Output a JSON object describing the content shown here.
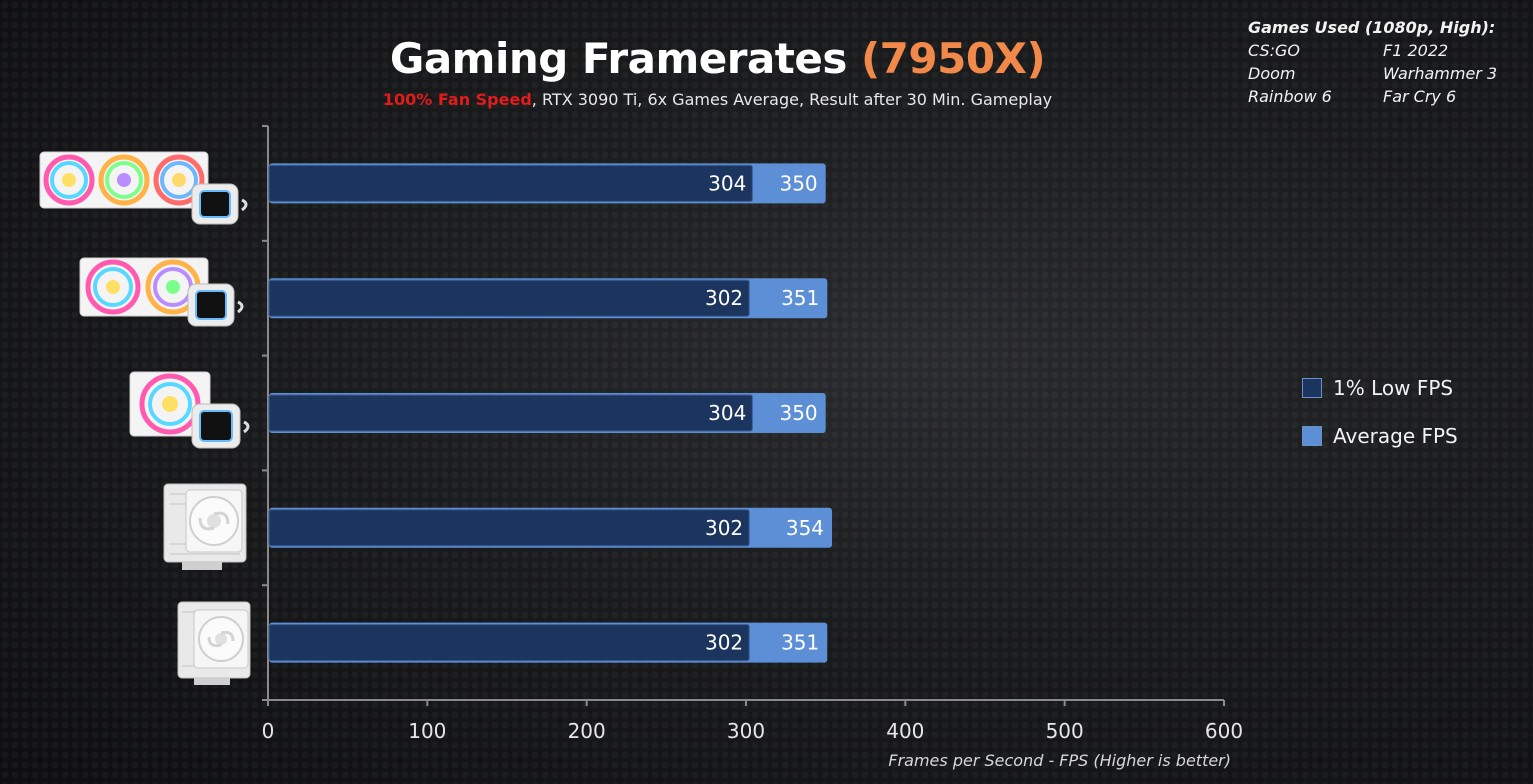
{
  "header": {
    "title_main": "Gaming Framerates ",
    "title_accent": "(7950X)",
    "subtitle_red": "100% Fan Speed",
    "subtitle_rest": ", RTX 3090 Ti, 6x Games Average, Result after 30 Min. Gameplay"
  },
  "games_box": {
    "heading": "Games Used (1080p, High):",
    "games": [
      "CS:GO",
      "F1 2022",
      "Doom",
      "Warhammer 3",
      "Rainbow 6",
      "Far Cry 6"
    ]
  },
  "legend": {
    "low_label": "1% Low FPS",
    "avg_label": "Average FPS"
  },
  "colors": {
    "low": "#1c355e",
    "avg": "#5c8fd6",
    "accent": "#f0894a",
    "red": "#e21b1b"
  },
  "coolers": [
    {
      "type": "aio-360",
      "icon": "aio-360-cooler-icon"
    },
    {
      "type": "aio-280",
      "icon": "aio-280-cooler-icon"
    },
    {
      "type": "aio-240",
      "icon": "aio-240-cooler-icon"
    },
    {
      "type": "dual-tower",
      "icon": "dual-tower-air-cooler-icon"
    },
    {
      "type": "single-tower",
      "icon": "single-tower-air-cooler-icon"
    }
  ],
  "chart_data": {
    "type": "bar",
    "orientation": "horizontal",
    "series": [
      {
        "name": "1% Low FPS",
        "values": [
          304,
          302,
          304,
          302,
          302
        ]
      },
      {
        "name": "Average FPS",
        "values": [
          350,
          351,
          350,
          354,
          351
        ]
      }
    ],
    "xlim": [
      0,
      600
    ],
    "xticks": [
      "0",
      "100",
      "200",
      "300",
      "400",
      "500",
      "600"
    ],
    "xlabel": "Frames per Second - FPS (Higher is better)",
    "legend_position": "right"
  }
}
